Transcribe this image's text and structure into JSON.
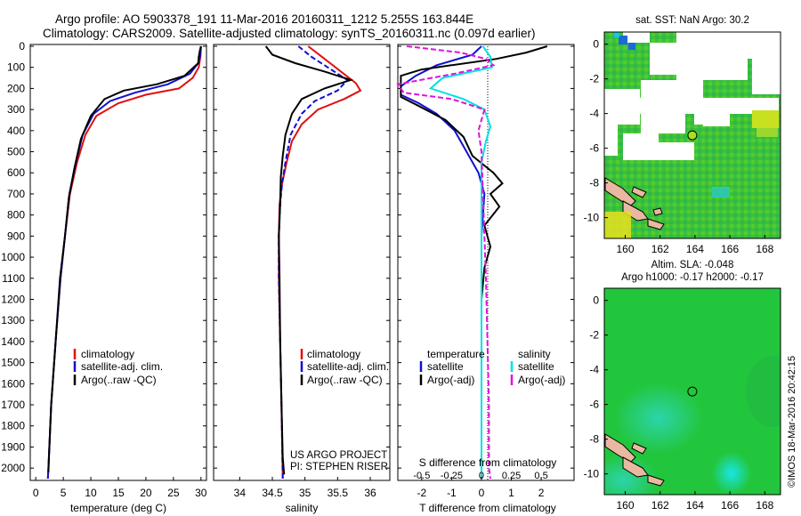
{
  "header": {
    "line1": "Argo profile: AO 5903378_191 11-Mar-2016 20160311_1212 5.255S 163.844E",
    "line2": "Climatology: CARS2009. Satellite-adjusted climatology: synTS_20160311.nc (0.097d earlier)"
  },
  "colors": {
    "climatology": "#e01010",
    "satellite": "#1010d0",
    "argo": "#000000",
    "sat_salinity": "#00e0e0",
    "argo_salinity_adj": "#e010e0"
  },
  "depth_ticks": [
    "0",
    "100",
    "200",
    "300",
    "400",
    "500",
    "600",
    "700",
    "800",
    "900",
    "1000",
    "1100",
    "1200",
    "1300",
    "1400",
    "1500",
    "1600",
    "1700",
    "1800",
    "1900",
    "2000"
  ],
  "chart_data": [
    {
      "type": "line",
      "name": "temperature",
      "xlabel": "temperature (deg C)",
      "xlim": [
        -1,
        31
      ],
      "ylim": [
        0,
        2050
      ],
      "xticks": [
        "0",
        "5",
        "10",
        "15",
        "20",
        "25",
        "30"
      ],
      "xtick_values": [
        0,
        5,
        10,
        15,
        20,
        25,
        30
      ],
      "legend": [
        "climatology",
        "satellite-adj. clim.",
        "Argo(..raw -QC)"
      ],
      "series": [
        {
          "name": "climatology",
          "color_key": "climatology",
          "points": [
            [
              30,
              0
            ],
            [
              29.9,
              50
            ],
            [
              29.6,
              100
            ],
            [
              28.5,
              150
            ],
            [
              26,
              200
            ],
            [
              20,
              230
            ],
            [
              15,
              270
            ],
            [
              11,
              330
            ],
            [
              9,
              420
            ],
            [
              7.5,
              550
            ],
            [
              6.2,
              700
            ],
            [
              5.3,
              900
            ],
            [
              4.5,
              1100
            ],
            [
              3.6,
              1400
            ],
            [
              2.8,
              1700
            ],
            [
              2.3,
              2000
            ],
            [
              2.2,
              2050
            ]
          ]
        },
        {
          "name": "satellite-adj. clim.",
          "color_key": "satellite",
          "points": [
            [
              30,
              0
            ],
            [
              29.9,
              40
            ],
            [
              29.5,
              80
            ],
            [
              28,
              130
            ],
            [
              24,
              180
            ],
            [
              18,
              220
            ],
            [
              13.5,
              260
            ],
            [
              10.5,
              320
            ],
            [
              8.5,
              420
            ],
            [
              7.3,
              550
            ],
            [
              6.1,
              700
            ],
            [
              5.3,
              900
            ],
            [
              4.5,
              1100
            ],
            [
              3.6,
              1400
            ],
            [
              2.8,
              1700
            ],
            [
              2.3,
              2000
            ],
            [
              2.2,
              2050
            ]
          ]
        },
        {
          "name": "Argo(..raw -QC)",
          "color_key": "argo",
          "points": [
            [
              30,
              0
            ],
            [
              29.8,
              20
            ],
            [
              29.6,
              50
            ],
            [
              29.5,
              80
            ],
            [
              27,
              140
            ],
            [
              22,
              180
            ],
            [
              16,
              210
            ],
            [
              12.5,
              250
            ],
            [
              10,
              330
            ],
            [
              8.2,
              440
            ],
            [
              7,
              580
            ],
            [
              6,
              720
            ],
            [
              5.3,
              900
            ],
            [
              4.4,
              1100
            ],
            [
              3.6,
              1400
            ],
            [
              2.8,
              1700
            ],
            [
              2.4,
              1950
            ],
            [
              2.3,
              2020
            ]
          ]
        }
      ]
    },
    {
      "type": "line",
      "name": "salinity",
      "xlabel": "salinity",
      "xlim": [
        33.6,
        36.3
      ],
      "ylim": [
        0,
        2050
      ],
      "xticks": [
        "34",
        "34.5",
        "35",
        "35.5",
        "36"
      ],
      "xtick_values": [
        34,
        34.5,
        35,
        35.5,
        36
      ],
      "legend": [
        "climatology",
        "satellite-adj. clim.",
        "Argo(..raw -QC)"
      ],
      "credit1": "US ARGO PROJECT",
      "credit2": "PI: STEPHEN RISER",
      "series": [
        {
          "name": "climatology",
          "color_key": "climatology",
          "points": [
            [
              35.05,
              0
            ],
            [
              35.3,
              60
            ],
            [
              35.55,
              120
            ],
            [
              35.78,
              175
            ],
            [
              35.85,
              210
            ],
            [
              35.6,
              250
            ],
            [
              35.2,
              300
            ],
            [
              34.95,
              370
            ],
            [
              34.8,
              450
            ],
            [
              34.72,
              550
            ],
            [
              34.65,
              650
            ],
            [
              34.61,
              750
            ],
            [
              34.6,
              900
            ],
            [
              34.6,
              1100
            ],
            [
              34.62,
              1400
            ],
            [
              34.64,
              1700
            ],
            [
              34.66,
              2050
            ]
          ]
        },
        {
          "name": "satellite-adj. clim.",
          "color_key": "satellite",
          "points": [
            [
              34.9,
              0
            ],
            [
              35.1,
              50
            ],
            [
              35.4,
              110
            ],
            [
              35.65,
              160
            ],
            [
              35.5,
              210
            ],
            [
              35.15,
              260
            ],
            [
              34.95,
              320
            ],
            [
              34.78,
              420
            ],
            [
              34.7,
              550
            ],
            [
              34.65,
              650
            ],
            [
              34.62,
              750
            ],
            [
              34.6,
              900
            ],
            [
              34.6,
              1100
            ],
            [
              34.62,
              1400
            ],
            [
              34.64,
              1700
            ],
            [
              34.66,
              2050
            ]
          ]
        },
        {
          "name": "Argo(..raw -QC)",
          "color_key": "argo",
          "points": [
            [
              34.4,
              0
            ],
            [
              34.5,
              40
            ],
            [
              34.85,
              80
            ],
            [
              35.3,
              120
            ],
            [
              35.7,
              160
            ],
            [
              35.3,
              200
            ],
            [
              34.95,
              250
            ],
            [
              34.8,
              320
            ],
            [
              34.7,
              420
            ],
            [
              34.66,
              520
            ],
            [
              34.63,
              620
            ],
            [
              34.62,
              750
            ],
            [
              34.6,
              900
            ],
            [
              34.61,
              1100
            ],
            [
              34.62,
              1400
            ],
            [
              34.64,
              1700
            ],
            [
              34.66,
              1950
            ],
            [
              34.68,
              2030
            ]
          ]
        }
      ]
    },
    {
      "type": "line",
      "name": "difference",
      "xlabel": "T difference from climatology",
      "top_label": "S difference from climatology",
      "xlim": [
        -2.8,
        3.1
      ],
      "ylim": [
        0,
        2050
      ],
      "xticks": [
        "-2",
        "-1",
        "0",
        "1",
        "2"
      ],
      "xtick_values": [
        -2,
        -1,
        0,
        1,
        2
      ],
      "sticks": [
        "-0.5",
        "-0.25",
        "0",
        "0.25",
        "0.5"
      ],
      "stick_values": [
        -0.5,
        -0.25,
        0,
        0.25,
        0.5
      ],
      "legend_t": {
        "title": "temperature",
        "satellite": "satellite",
        "argo": "Argo(-adj)"
      },
      "legend_s": {
        "title": "salinity",
        "satellite": "satellite",
        "argo": "Argo(-adj)"
      },
      "series": [
        {
          "name": "T satellite",
          "color_key": "satellite",
          "points": [
            [
              0,
              0
            ],
            [
              -0.3,
              40
            ],
            [
              -1.5,
              90
            ],
            [
              -2.2,
              140
            ],
            [
              -2.7,
              190
            ],
            [
              -2.7,
              230
            ],
            [
              -2.1,
              270
            ],
            [
              -1.5,
              320
            ],
            [
              -0.9,
              400
            ],
            [
              -0.5,
              500
            ],
            [
              -0.1,
              600
            ],
            [
              0.1,
              700
            ],
            [
              0.05,
              800
            ],
            [
              0,
              900
            ],
            [
              0,
              1000
            ],
            [
              0,
              2050
            ]
          ]
        },
        {
          "name": "T Argo(-adj)",
          "color_key": "argo",
          "points": [
            [
              2.2,
              0
            ],
            [
              1.5,
              30
            ],
            [
              0.5,
              60
            ],
            [
              -1,
              90
            ],
            [
              -2,
              110
            ],
            [
              -2.7,
              140
            ],
            [
              -2.7,
              240
            ],
            [
              -2,
              290
            ],
            [
              -1.2,
              350
            ],
            [
              -0.6,
              430
            ],
            [
              -0.3,
              520
            ],
            [
              0.4,
              600
            ],
            [
              0.7,
              650
            ],
            [
              0.3,
              700
            ],
            [
              0.6,
              760
            ],
            [
              0.1,
              850
            ],
            [
              0.3,
              950
            ],
            [
              0.1,
              1050
            ],
            [
              0,
              1200
            ],
            [
              0,
              2050
            ]
          ]
        },
        {
          "name": "S satellite",
          "color_key": "sat_salinity",
          "points": [
            [
              0.05,
              0
            ],
            [
              0.3,
              50
            ],
            [
              0.35,
              100
            ],
            [
              -1.3,
              150
            ],
            [
              -1.7,
              200
            ],
            [
              -0.6,
              250
            ],
            [
              0.1,
              300
            ],
            [
              0.3,
              380
            ],
            [
              0.15,
              450
            ],
            [
              0,
              550
            ],
            [
              0,
              2050
            ]
          ]
        },
        {
          "name": "S Argo(-adj)",
          "color_key": "argo_salinity_adj",
          "points": [
            [
              -2.5,
              0
            ],
            [
              -0.7,
              30
            ],
            [
              0.15,
              60
            ],
            [
              0.4,
              90
            ],
            [
              -0.9,
              130
            ],
            [
              -2.8,
              180
            ],
            [
              -2.6,
              220
            ],
            [
              -1,
              250
            ],
            [
              0.1,
              300
            ],
            [
              -0.1,
              400
            ],
            [
              0,
              500
            ],
            [
              0.05,
              700
            ],
            [
              0.1,
              900
            ],
            [
              0.15,
              1100
            ],
            [
              0.2,
              1400
            ],
            [
              0.25,
              1700
            ],
            [
              0.25,
              2000
            ],
            [
              0.3,
              2050
            ]
          ]
        }
      ]
    },
    {
      "type": "heatmap",
      "name": "sst_map",
      "title": "sat. SST: NaN Argo: 30.2",
      "xlim": [
        158.8,
        168.9
      ],
      "ylim": [
        -11.2,
        0.7
      ],
      "xticks": [
        "160",
        "162",
        "164",
        "166",
        "168"
      ],
      "xtick_values": [
        160,
        162,
        164,
        166,
        168
      ],
      "yticks": [
        "0",
        "-2",
        "-4",
        "-6",
        "-8",
        "-10"
      ],
      "ytick_values": [
        0,
        -2,
        -4,
        -6,
        -8,
        -10
      ],
      "float_position": [
        163.844,
        -5.255
      ]
    },
    {
      "type": "heatmap",
      "name": "sla_map",
      "title1": "Altim. SLA: -0.048",
      "title2": "Argo h1000: -0.17 h2000: -0.17",
      "xlim": [
        158.8,
        168.9
      ],
      "ylim": [
        -11.2,
        0.7
      ],
      "xticks": [
        "160",
        "162",
        "164",
        "166",
        "168"
      ],
      "xtick_values": [
        160,
        162,
        164,
        166,
        168
      ],
      "yticks": [
        "0",
        "-2",
        "-4",
        "-6",
        "-8",
        "-10"
      ],
      "ytick_values": [
        0,
        -2,
        -4,
        -6,
        -8,
        -10
      ],
      "float_position": [
        163.844,
        -5.255
      ]
    }
  ],
  "footer": {
    "credit": "©IMOS 18-Mar-2016 20:42:15"
  }
}
